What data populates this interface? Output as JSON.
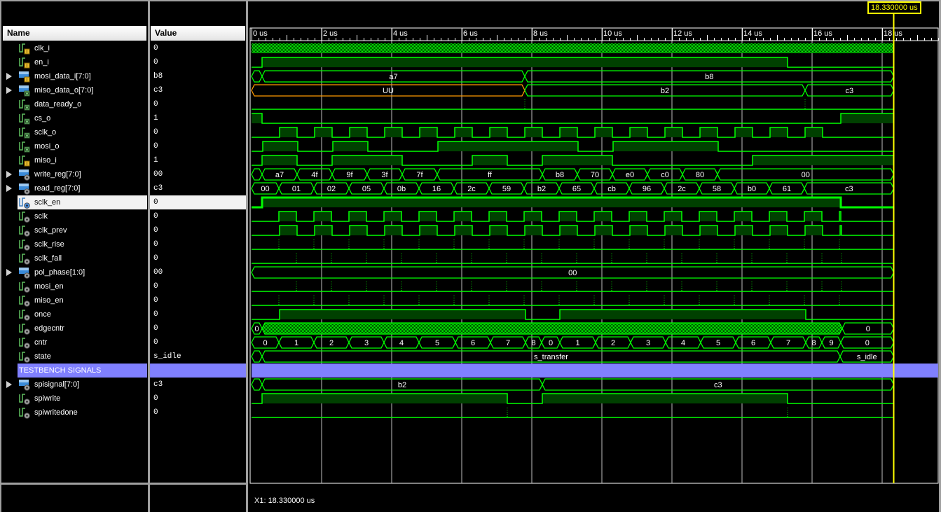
{
  "headers": {
    "name": "Name",
    "value": "Value"
  },
  "cursor": {
    "time_us": 18.33,
    "label": "18.330000 us",
    "readout": "X1: 18.330000 us"
  },
  "timeline": {
    "unit": "us",
    "start": 0,
    "major_step": 2,
    "labels": [
      "0 us",
      "2 us",
      "4 us",
      "6 us",
      "8 us",
      "10 us",
      "12 us",
      "14 us",
      "16 us",
      "18 us"
    ]
  },
  "colors": {
    "wave": "#00ff00",
    "fill": "#004000",
    "undefined": "#ff9900",
    "cursor": "#ffff00",
    "divider": "#8080ff",
    "grid": "#c0c0c0"
  },
  "selected_signal": "sclk_en",
  "signals": [
    {
      "name": "clk_i",
      "value": "0",
      "icon": "input-bit",
      "wave": {
        "kind": "clock"
      }
    },
    {
      "name": "en_i",
      "value": "0",
      "icon": "input-bit",
      "wave": {
        "kind": "bit",
        "init": 0,
        "toggles": [
          0.3,
          15.3
        ]
      }
    },
    {
      "name": "mosi_data_i[7:0]",
      "value": "b8",
      "icon": "input-bus",
      "expandable": true,
      "wave": {
        "kind": "bus",
        "segments": [
          [
            0,
            ""
          ],
          [
            0.3,
            "a7"
          ],
          [
            7.8,
            "b8"
          ]
        ]
      }
    },
    {
      "name": "miso_data_o[7:0]",
      "value": "c3",
      "icon": "output-bus",
      "expandable": true,
      "wave": {
        "kind": "bus",
        "segments": [
          [
            0,
            "UU",
            "undefined"
          ],
          [
            7.8,
            "b2"
          ],
          [
            15.8,
            "c3"
          ]
        ]
      }
    },
    {
      "name": "data_ready_o",
      "value": "0",
      "icon": "output-bit",
      "wave": {
        "kind": "pulse",
        "times": [
          7.8,
          15.8
        ]
      }
    },
    {
      "name": "cs_o",
      "value": "1",
      "icon": "output-bit",
      "wave": {
        "kind": "bit",
        "init": 1,
        "toggles": [
          0.3,
          16.82
        ]
      }
    },
    {
      "name": "sclk_o",
      "value": "0",
      "icon": "output-bit",
      "wave": {
        "kind": "bit",
        "init": 0,
        "toggles": [
          0.8,
          1.3,
          1.8,
          2.3,
          2.8,
          3.3,
          3.8,
          4.3,
          4.8,
          5.3,
          5.8,
          6.3,
          6.8,
          7.3,
          7.8,
          8.3,
          8.8,
          9.3,
          9.8,
          10.3,
          10.8,
          11.3,
          11.8,
          12.3,
          12.8,
          13.3,
          13.8,
          14.3,
          14.8,
          15.3,
          15.8,
          16.3
        ]
      }
    },
    {
      "name": "mosi_o",
      "value": "0",
      "icon": "output-bit",
      "wave": {
        "kind": "bit",
        "init": 0,
        "toggles": [
          0.32,
          1.32,
          2.32,
          3.32,
          5.32,
          9.32,
          10.32,
          13.32
        ]
      }
    },
    {
      "name": "miso_i",
      "value": "1",
      "icon": "input-bit",
      "wave": {
        "kind": "bit",
        "init": 0,
        "toggles": [
          0.3,
          1.3,
          2.3,
          4.3,
          6.3,
          7.3,
          8.3,
          10.3,
          14.3
        ]
      }
    },
    {
      "name": "write_reg[7:0]",
      "value": "00",
      "icon": "internal-bus",
      "expandable": true,
      "wave": {
        "kind": "bus",
        "segments": [
          [
            0,
            ""
          ],
          [
            0.3,
            "a7"
          ],
          [
            1.3,
            "4f"
          ],
          [
            2.3,
            "9f"
          ],
          [
            3.3,
            "3f"
          ],
          [
            4.3,
            "7f"
          ],
          [
            5.3,
            "ff"
          ],
          [
            8.3,
            "b8"
          ],
          [
            9.3,
            "70"
          ],
          [
            10.3,
            "e0"
          ],
          [
            11.3,
            "c0"
          ],
          [
            12.3,
            "80"
          ],
          [
            13.3,
            "00"
          ]
        ]
      }
    },
    {
      "name": "read_reg[7:0]",
      "value": "c3",
      "icon": "internal-bus",
      "expandable": true,
      "wave": {
        "kind": "bus",
        "segments": [
          [
            0,
            "00"
          ],
          [
            0.78,
            "01"
          ],
          [
            1.78,
            "02"
          ],
          [
            2.78,
            "05"
          ],
          [
            3.78,
            "0b"
          ],
          [
            4.78,
            "16"
          ],
          [
            5.78,
            "2c"
          ],
          [
            6.78,
            "59"
          ],
          [
            7.78,
            "b2"
          ],
          [
            8.78,
            "65"
          ],
          [
            9.78,
            "cb"
          ],
          [
            10.78,
            "96"
          ],
          [
            11.78,
            "2c"
          ],
          [
            12.78,
            "58"
          ],
          [
            13.78,
            "b0"
          ],
          [
            14.78,
            "61"
          ],
          [
            15.78,
            "c3"
          ]
        ]
      }
    },
    {
      "name": "sclk_en",
      "value": "0",
      "icon": "internal-bit-selected",
      "wave": {
        "kind": "bit",
        "init": 0,
        "toggles": [
          0.3,
          16.82
        ]
      }
    },
    {
      "name": "sclk",
      "value": "0",
      "icon": "internal-bit",
      "wave": {
        "kind": "bit",
        "init": 0,
        "toggles": [
          0.78,
          1.28,
          1.78,
          2.28,
          2.78,
          3.28,
          3.78,
          4.28,
          4.78,
          5.28,
          5.78,
          6.28,
          6.78,
          7.28,
          7.78,
          8.28,
          8.78,
          9.28,
          9.78,
          10.28,
          10.78,
          11.28,
          11.78,
          12.28,
          12.78,
          13.28,
          13.78,
          14.28,
          14.78,
          15.28,
          15.78,
          16.28,
          16.78,
          16.82
        ]
      }
    },
    {
      "name": "sclk_prev",
      "value": "0",
      "icon": "internal-bit",
      "wave": {
        "kind": "bit",
        "init": 0,
        "toggles": [
          0.8,
          1.3,
          1.8,
          2.3,
          2.8,
          3.3,
          3.8,
          4.3,
          4.8,
          5.3,
          5.8,
          6.3,
          6.8,
          7.3,
          7.8,
          8.3,
          8.8,
          9.3,
          9.8,
          10.3,
          10.8,
          11.3,
          11.8,
          12.3,
          12.8,
          13.3,
          13.8,
          14.3,
          14.8,
          15.3,
          15.8,
          16.3,
          16.8,
          16.84
        ]
      }
    },
    {
      "name": "sclk_rise",
      "value": "0",
      "icon": "internal-bit",
      "wave": {
        "kind": "pulse",
        "times": [
          0.78,
          1.78,
          2.78,
          3.78,
          4.78,
          5.78,
          6.78,
          7.78,
          8.78,
          9.78,
          10.78,
          11.78,
          12.78,
          13.78,
          14.78,
          15.78,
          16.78
        ]
      }
    },
    {
      "name": "sclk_fall",
      "value": "0",
      "icon": "internal-bit",
      "wave": {
        "kind": "pulse",
        "times": [
          1.28,
          2.28,
          3.28,
          4.28,
          5.28,
          6.28,
          7.28,
          8.28,
          9.28,
          10.28,
          11.28,
          12.28,
          13.28,
          14.28,
          15.28,
          16.28,
          16.84
        ]
      }
    },
    {
      "name": "pol_phase[1:0]",
      "value": "00",
      "icon": "internal-bus",
      "expandable": true,
      "wave": {
        "kind": "bus",
        "segments": [
          [
            0,
            "00"
          ]
        ]
      }
    },
    {
      "name": "mosi_en",
      "value": "0",
      "icon": "internal-bit",
      "wave": {
        "kind": "pulse",
        "times": [
          1.28,
          2.28,
          3.28,
          4.28,
          5.28,
          6.28,
          7.28,
          8.28,
          9.28,
          10.28,
          11.28,
          12.28,
          13.28,
          14.28,
          15.28,
          16.28,
          16.84
        ]
      }
    },
    {
      "name": "miso_en",
      "value": "0",
      "icon": "internal-bit",
      "wave": {
        "kind": "pulse",
        "times": [
          0.78,
          1.78,
          2.78,
          3.78,
          4.78,
          5.78,
          6.78,
          7.78,
          8.78,
          9.78,
          10.78,
          11.78,
          12.78,
          13.78,
          14.78,
          15.78,
          16.78
        ]
      }
    },
    {
      "name": "once",
      "value": "0",
      "icon": "internal-bit",
      "wave": {
        "kind": "bit",
        "init": 0,
        "toggles": [
          0.8,
          7.82,
          8.8,
          15.82
        ]
      }
    },
    {
      "name": "edgecntr",
      "value": "0",
      "icon": "internal-bit",
      "wave": {
        "kind": "bus",
        "segments": [
          [
            0,
            "0"
          ],
          [
            0.3,
            null
          ],
          [
            16.86,
            "0"
          ]
        ]
      }
    },
    {
      "name": "cntr",
      "value": "0",
      "icon": "internal-bit",
      "wave": {
        "kind": "bus",
        "segments": [
          [
            0,
            "0"
          ],
          [
            0.78,
            "1"
          ],
          [
            1.78,
            "2"
          ],
          [
            2.78,
            "3"
          ],
          [
            3.78,
            "4"
          ],
          [
            4.78,
            "5"
          ],
          [
            5.82,
            "6"
          ],
          [
            6.82,
            "7"
          ],
          [
            7.82,
            "8"
          ],
          [
            8.28,
            "0"
          ],
          [
            8.8,
            "1"
          ],
          [
            9.82,
            "2"
          ],
          [
            10.82,
            "3"
          ],
          [
            11.82,
            "4"
          ],
          [
            12.82,
            "5"
          ],
          [
            13.82,
            "6"
          ],
          [
            14.82,
            "7"
          ],
          [
            15.82,
            "8"
          ],
          [
            16.28,
            "9"
          ],
          [
            16.82,
            "0"
          ]
        ]
      }
    },
    {
      "name": "state",
      "value": "s_idle",
      "icon": "internal-bit",
      "wave": {
        "kind": "bus",
        "segments": [
          [
            0,
            ""
          ],
          [
            0.3,
            "s_transfer"
          ],
          [
            16.8,
            "s_idle"
          ]
        ]
      }
    },
    {
      "name": "TESTBENCH SIGNALS",
      "value": "",
      "divider": true
    },
    {
      "name": "spisignal[7:0]",
      "value": "c3",
      "icon": "internal-bus",
      "expandable": true,
      "wave": {
        "kind": "bus",
        "segments": [
          [
            0,
            ""
          ],
          [
            0.3,
            "b2"
          ],
          [
            8.3,
            "c3"
          ]
        ]
      }
    },
    {
      "name": "spiwrite",
      "value": "0",
      "icon": "internal-bit",
      "wave": {
        "kind": "bit",
        "init": 0,
        "toggles": [
          0.3,
          7.3,
          8.3,
          15.3
        ]
      }
    },
    {
      "name": "spiwritedone",
      "value": "0",
      "icon": "internal-bit",
      "wave": {
        "kind": "pulse",
        "times": [
          7.3,
          15.3
        ]
      }
    }
  ]
}
